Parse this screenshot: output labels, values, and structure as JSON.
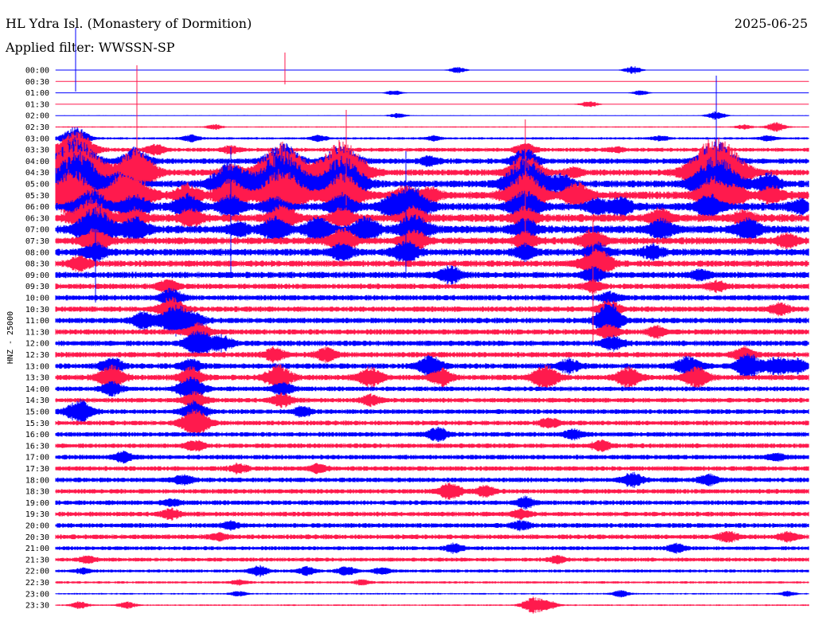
{
  "header": {
    "station": "HL Ydra Isl. (Monastery of Dormition)",
    "date": "2025-06-25",
    "filter": "Applied filter: WWSSN-SP"
  },
  "chart_data": {
    "type": "line",
    "title": "HL Ydra Isl. (Monastery of Dormition)",
    "ylabel": "HNZ - 25000",
    "colors": [
      "#0000ff",
      "#ff1a4d"
    ],
    "rows": [
      "00:00",
      "00:30",
      "01:00",
      "01:30",
      "02:00",
      "02:30",
      "03:00",
      "03:30",
      "04:00",
      "04:30",
      "05:00",
      "05:30",
      "06:00",
      "06:30",
      "07:00",
      "07:30",
      "08:00",
      "08:30",
      "09:00",
      "09:30",
      "10:00",
      "10:30",
      "11:00",
      "11:30",
      "12:00",
      "12:30",
      "13:00",
      "13:30",
      "14:00",
      "14:30",
      "15:00",
      "15:30",
      "16:00",
      "16:30",
      "17:00",
      "17:30",
      "18:00",
      "18:30",
      "19:00",
      "19:30",
      "20:00",
      "20:30",
      "21:00",
      "21:30",
      "22:00",
      "22:30",
      "23:00",
      "23:30"
    ],
    "noise_level": [
      0.3,
      0.4,
      0.4,
      0.5,
      0.6,
      0.8,
      1.5,
      2.5,
      3.5,
      4,
      4.5,
      5,
      5,
      5,
      5,
      4.5,
      4.5,
      4,
      4,
      3.5,
      3.5,
      3.5,
      3.5,
      3.5,
      3.5,
      3.5,
      3.5,
      3.5,
      3,
      3,
      3,
      3,
      3,
      3,
      3,
      3,
      3,
      3,
      3,
      3,
      3,
      3,
      2.5,
      2.5,
      2,
      1.5,
      1,
      1
    ],
    "events": [
      [
        [
          575,
          4
        ],
        [
          795,
          5
        ]
      ],
      [],
      [
        [
          495,
          3
        ],
        [
          805,
          3
        ]
      ],
      [
        [
          740,
          4
        ]
      ],
      [
        [
          500,
          3
        ],
        [
          900,
          5
        ]
      ],
      [
        [
          270,
          3
        ],
        [
          975,
          6
        ],
        [
          935,
          3
        ]
      ],
      [
        [
          95,
          14
        ],
        [
          240,
          4
        ],
        [
          400,
          4
        ],
        [
          545,
          3
        ],
        [
          830,
          3
        ],
        [
          965,
          3
        ]
      ],
      [
        [
          95,
          24
        ],
        [
          195,
          6
        ],
        [
          290,
          4
        ],
        [
          660,
          8
        ],
        [
          775,
          3
        ]
      ],
      [
        [
          95,
          28
        ],
        [
          170,
          16
        ],
        [
          355,
          22
        ],
        [
          430,
          20
        ],
        [
          660,
          14
        ],
        [
          900,
          24
        ],
        [
          540,
          5
        ]
      ],
      [
        [
          95,
          45
        ],
        [
          170,
          28
        ],
        [
          355,
          38
        ],
        [
          430,
          38
        ],
        [
          660,
          22
        ],
        [
          900,
          45
        ],
        [
          290,
          10
        ],
        [
          720,
          5
        ]
      ],
      [
        [
          90,
          32
        ],
        [
          110,
          18
        ],
        [
          150,
          14
        ],
        [
          290,
          28
        ],
        [
          355,
          40
        ],
        [
          430,
          32
        ],
        [
          660,
          30
        ],
        [
          705,
          10
        ],
        [
          900,
          34
        ],
        [
          965,
          12
        ]
      ],
      [
        [
          90,
          30
        ],
        [
          150,
          18
        ],
        [
          170,
          22
        ],
        [
          235,
          12
        ],
        [
          290,
          18
        ],
        [
          355,
          32
        ],
        [
          430,
          26
        ],
        [
          510,
          10
        ],
        [
          540,
          8
        ],
        [
          660,
          26
        ],
        [
          725,
          14
        ],
        [
          895,
          20
        ],
        [
          925,
          10
        ],
        [
          970,
          10
        ]
      ],
      [
        [
          115,
          20
        ],
        [
          170,
          14
        ],
        [
          235,
          14
        ],
        [
          290,
          12
        ],
        [
          345,
          10
        ],
        [
          430,
          14
        ],
        [
          490,
          10
        ],
        [
          510,
          16
        ],
        [
          525,
          14
        ],
        [
          660,
          18
        ],
        [
          750,
          8
        ],
        [
          780,
          10
        ],
        [
          890,
          14
        ],
        [
          1005,
          8
        ]
      ],
      [
        [
          115,
          24
        ],
        [
          170,
          10
        ],
        [
          240,
          10
        ],
        [
          355,
          14
        ],
        [
          430,
          10
        ],
        [
          520,
          12
        ],
        [
          660,
          12
        ],
        [
          830,
          10
        ],
        [
          935,
          8
        ]
      ],
      [
        [
          120,
          26
        ],
        [
          170,
          14
        ],
        [
          300,
          8
        ],
        [
          345,
          14
        ],
        [
          400,
          14
        ],
        [
          460,
          14
        ],
        [
          520,
          18
        ],
        [
          660,
          12
        ],
        [
          830,
          12
        ],
        [
          940,
          12
        ]
      ],
      [
        [
          120,
          14
        ],
        [
          430,
          14
        ],
        [
          520,
          12
        ],
        [
          660,
          10
        ],
        [
          745,
          12
        ],
        [
          990,
          8
        ]
      ],
      [
        [
          120,
          10
        ],
        [
          430,
          10
        ],
        [
          510,
          12
        ],
        [
          660,
          8
        ],
        [
          750,
          10
        ],
        [
          820,
          8
        ]
      ],
      [
        [
          100,
          8
        ],
        [
          745,
          14
        ],
        [
          760,
          8
        ]
      ],
      [
        [
          565,
          10
        ],
        [
          745,
          8
        ],
        [
          880,
          6
        ]
      ],
      [
        [
          210,
          8
        ],
        [
          745,
          6
        ],
        [
          900,
          6
        ]
      ],
      [
        [
          215,
          10
        ],
        [
          765,
          6
        ]
      ],
      [
        [
          215,
          14
        ],
        [
          765,
          10
        ],
        [
          980,
          6
        ]
      ],
      [
        [
          180,
          10
        ],
        [
          220,
          18
        ],
        [
          245,
          8
        ],
        [
          765,
          14
        ],
        [
          765,
          10
        ]
      ],
      [
        [
          250,
          10
        ],
        [
          765,
          8
        ],
        [
          825,
          6
        ]
      ],
      [
        [
          250,
          16
        ],
        [
          280,
          8
        ],
        [
          770,
          8
        ]
      ],
      [
        [
          345,
          8
        ],
        [
          410,
          8
        ],
        [
          935,
          8
        ]
      ],
      [
        [
          140,
          10
        ],
        [
          240,
          8
        ],
        [
          540,
          12
        ],
        [
          715,
          8
        ],
        [
          865,
          12
        ],
        [
          940,
          14
        ],
        [
          975,
          10
        ],
        [
          1000,
          8
        ]
      ],
      [
        [
          140,
          14
        ],
        [
          240,
          12
        ],
        [
          350,
          14
        ],
        [
          465,
          12
        ],
        [
          555,
          10
        ],
        [
          685,
          14
        ],
        [
          790,
          12
        ],
        [
          875,
          12
        ]
      ],
      [
        [
          140,
          8
        ],
        [
          240,
          14
        ],
        [
          355,
          8
        ]
      ],
      [
        [
          245,
          10
        ],
        [
          355,
          8
        ],
        [
          465,
          6
        ]
      ],
      [
        [
          100,
          14
        ],
        [
          245,
          12
        ],
        [
          380,
          6
        ]
      ],
      [
        [
          245,
          16
        ],
        [
          690,
          6
        ]
      ],
      [
        [
          550,
          8
        ],
        [
          720,
          6
        ]
      ],
      [
        [
          245,
          6
        ],
        [
          755,
          6
        ]
      ],
      [
        [
          155,
          6
        ],
        [
          975,
          4
        ]
      ],
      [
        [
          300,
          5
        ],
        [
          400,
          5
        ]
      ],
      [
        [
          230,
          6
        ],
        [
          795,
          8
        ],
        [
          890,
          6
        ]
      ],
      [
        [
          565,
          10
        ],
        [
          610,
          6
        ]
      ],
      [
        [
          215,
          4
        ],
        [
          660,
          6
        ]
      ],
      [
        [
          215,
          6
        ],
        [
          655,
          5
        ]
      ],
      [
        [
          290,
          4
        ],
        [
          655,
          5
        ]
      ],
      [
        [
          275,
          4
        ],
        [
          915,
          6
        ],
        [
          990,
          5
        ]
      ],
      [
        [
          570,
          5
        ],
        [
          850,
          5
        ]
      ],
      [
        [
          110,
          4
        ],
        [
          700,
          4
        ]
      ],
      [
        [
          105,
          3
        ],
        [
          325,
          6
        ],
        [
          385,
          5
        ],
        [
          435,
          5
        ],
        [
          480,
          4
        ]
      ],
      [
        [
          300,
          3
        ],
        [
          455,
          3
        ]
      ],
      [
        [
          300,
          3
        ],
        [
          780,
          4
        ],
        [
          990,
          3
        ]
      ],
      [
        [
          100,
          4
        ],
        [
          160,
          4
        ],
        [
          670,
          10
        ],
        [
          690,
          5
        ]
      ]
    ],
    "spikes": [
      [
        95,
        62,
        1,
        "#ff1a4d"
      ],
      [
        95,
        35,
        1,
        "#0000ff"
      ],
      [
        358,
        66,
        1,
        "#ff1a4d"
      ],
      [
        172,
        82,
        1,
        "#ff1a4d"
      ],
      [
        435,
        138,
        1,
        "#ff1a4d"
      ],
      [
        660,
        150,
        1,
        "#ff1a4d"
      ],
      [
        900,
        95,
        1,
        "#0000ff"
      ],
      [
        510,
        190,
        1,
        "#0000ff"
      ],
      [
        120,
        260,
        1,
        "#0000ff"
      ],
      [
        745,
        270,
        1,
        "#ff1a4d"
      ],
      [
        290,
        185,
        1,
        "#0000ff"
      ]
    ]
  }
}
